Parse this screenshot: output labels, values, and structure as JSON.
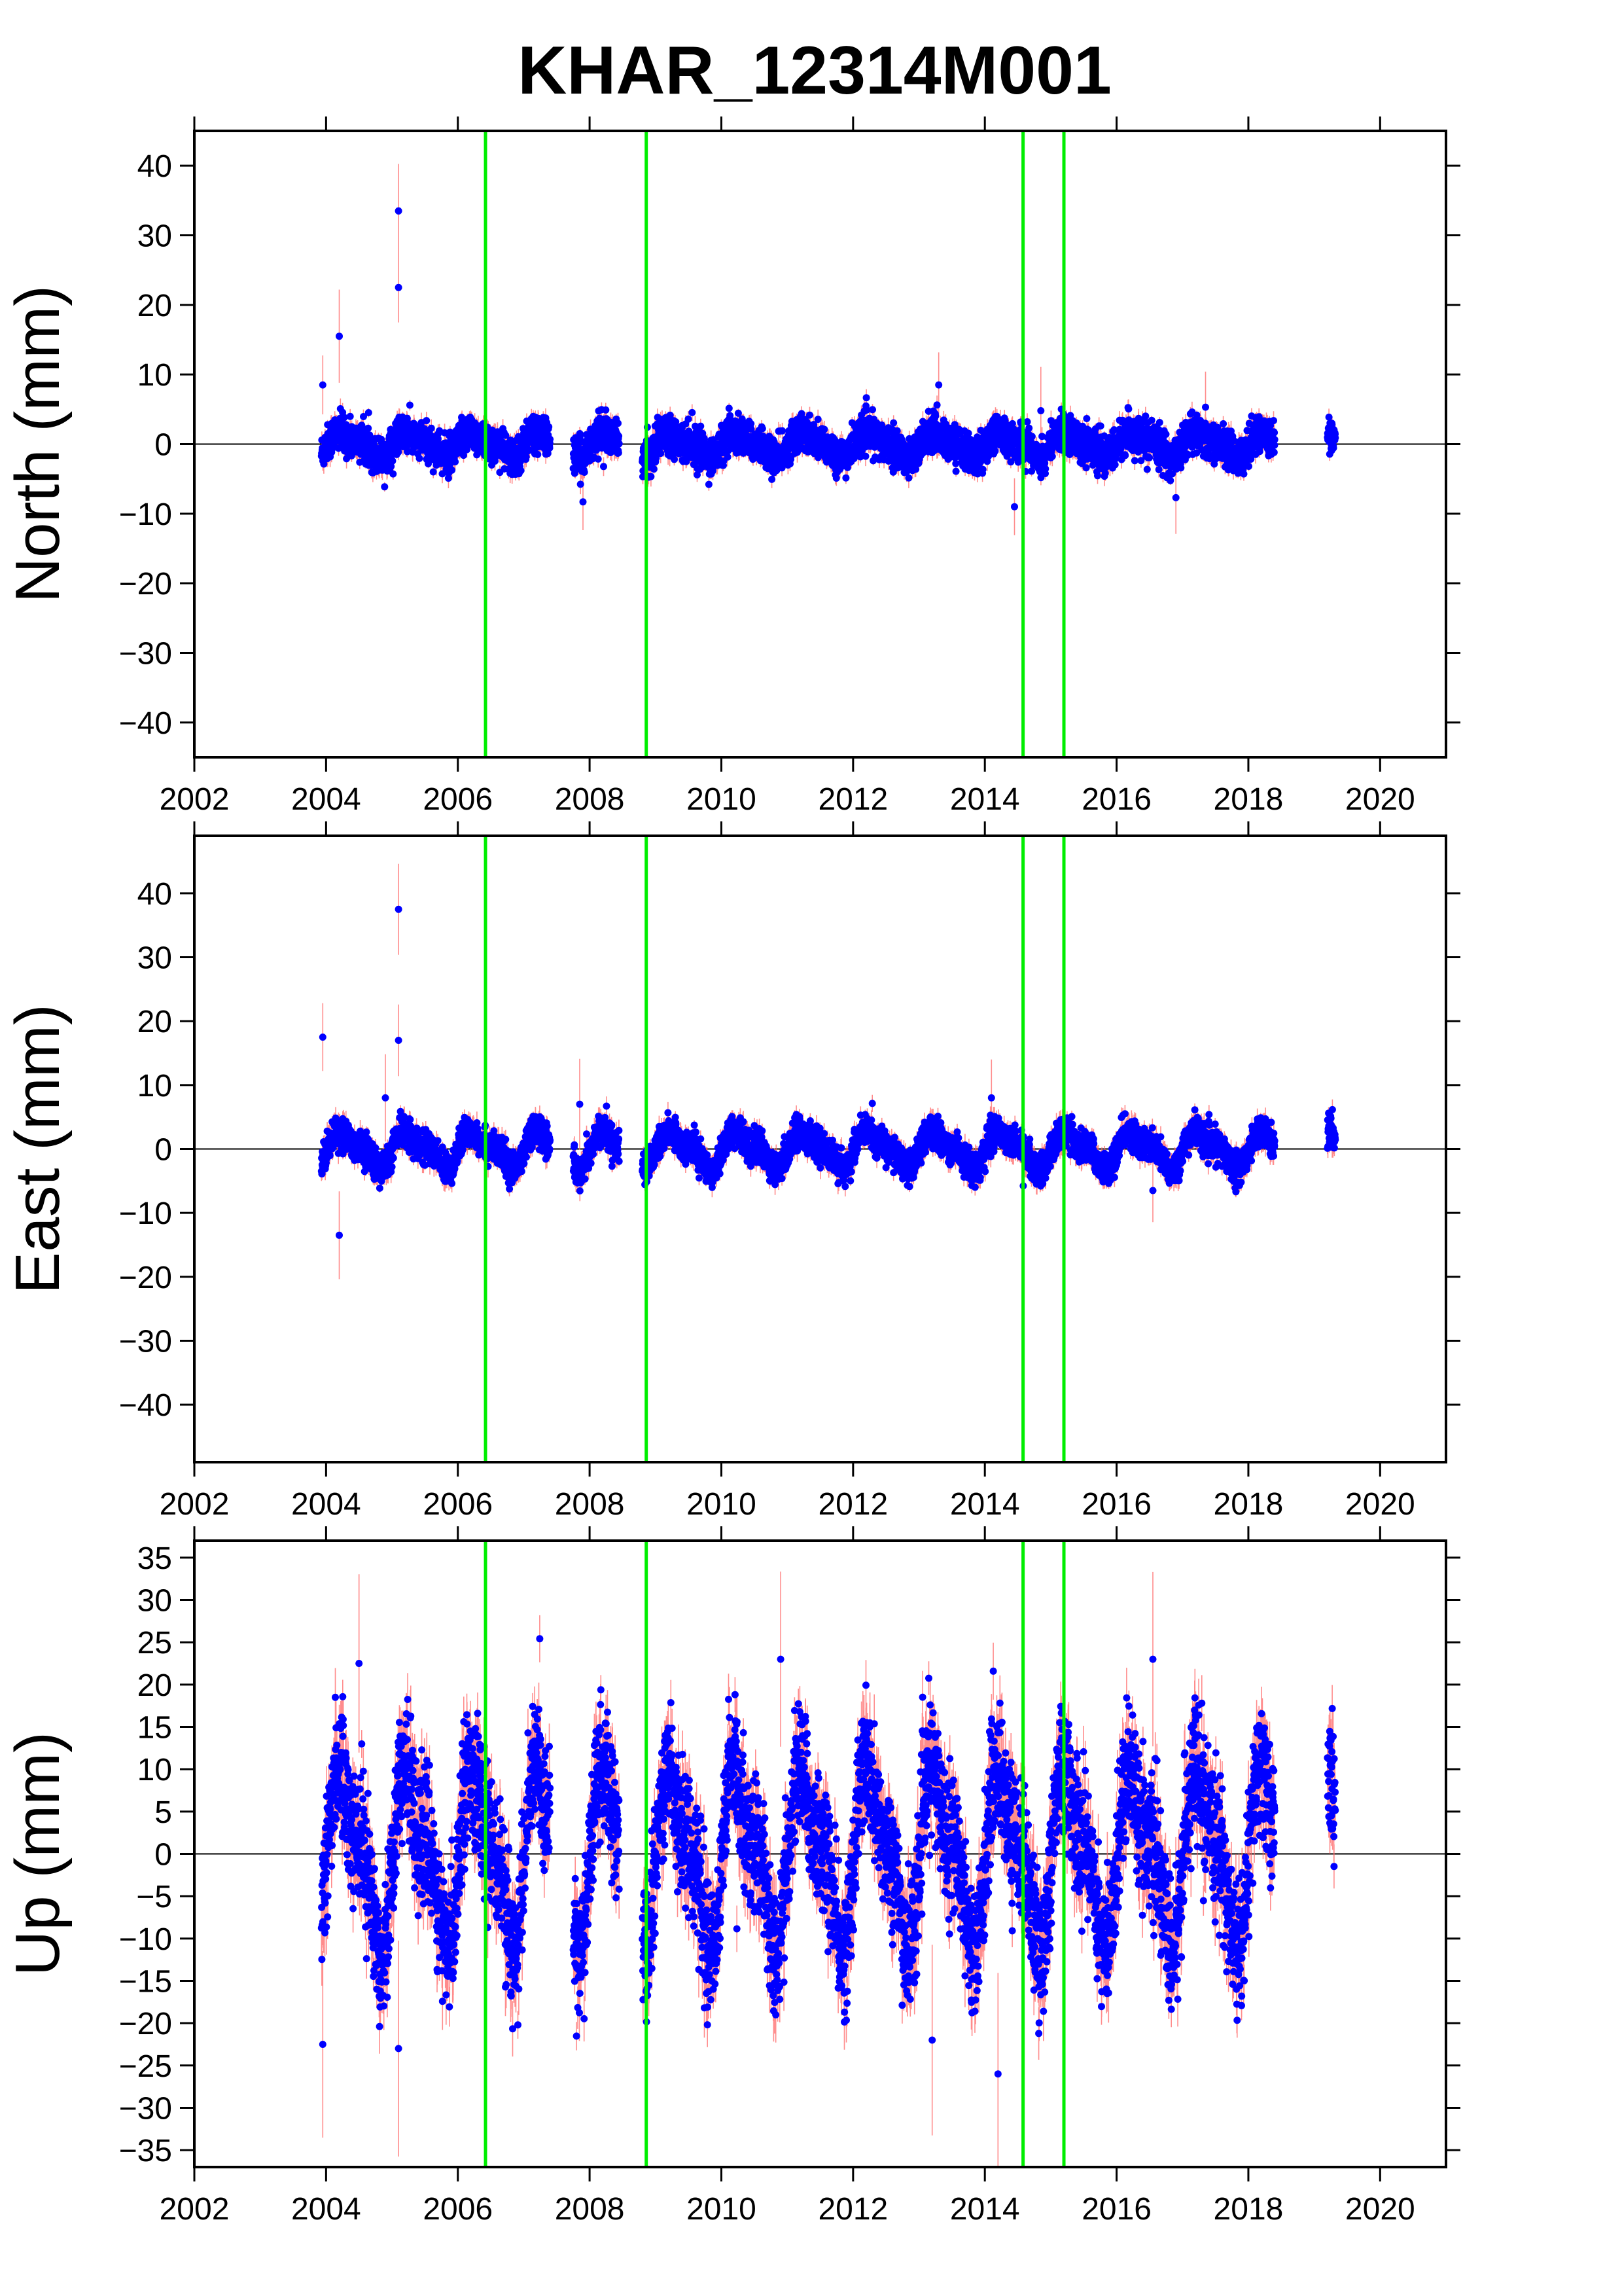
{
  "chart_data": {
    "title": "KHAR_12314M001",
    "type": "scatter",
    "station": "KHAR_12314M001",
    "colors": {
      "points": "#0000ff",
      "error_bars": "#ff6666",
      "breaks": "#00ee00",
      "zero_line": "#000000",
      "frame": "#000000"
    },
    "x_range": [
      2002,
      2021
    ],
    "x_ticks": [
      2002,
      2004,
      2006,
      2008,
      2010,
      2012,
      2014,
      2016,
      2018,
      2020
    ],
    "x_tick_labels": [
      "2002",
      "2004",
      "2006",
      "2008",
      "2010",
      "2012",
      "2014",
      "2016",
      "2018",
      "2020"
    ],
    "break_epochs": [
      2006.42,
      2008.86,
      2014.58,
      2015.2
    ],
    "data_gaps": [
      [
        2007.4,
        2007.75
      ],
      [
        2008.45,
        2008.8
      ],
      [
        2018.4,
        2019.2
      ],
      [
        2019.35,
        2021
      ]
    ],
    "panels": [
      {
        "ylabel": "North (mm)",
        "ylim": [
          -45,
          45
        ],
        "y_ticks": [
          40,
          30,
          20,
          10,
          0,
          -10,
          -20,
          -30,
          -40
        ],
        "y_tick_labels": [
          "40",
          "30",
          "20",
          "10",
          "0",
          "−10",
          "−20",
          "−30",
          "−40"
        ],
        "amplitude": 1.5,
        "noise": 1.3,
        "errbar": 1.0,
        "outliers": [
          [
            2003.95,
            8.5
          ],
          [
            2004.2,
            15.5
          ],
          [
            2005.1,
            33.5
          ],
          [
            2005.1,
            22.5
          ],
          [
            2007.9,
            -8.3
          ],
          [
            2013.3,
            8.5
          ],
          [
            2014.45,
            -9.0
          ],
          [
            2016.9,
            -7.7
          ],
          [
            2017.35,
            5.3
          ],
          [
            2014.85,
            4.8
          ]
        ]
      },
      {
        "ylabel": "East (mm)",
        "ylim": [
          -49,
          49
        ],
        "y_ticks": [
          40,
          30,
          20,
          10,
          0,
          -10,
          -20,
          -30,
          -40
        ],
        "y_tick_labels": [
          "40",
          "30",
          "20",
          "10",
          "0",
          "−10",
          "−20",
          "−30",
          "−40"
        ],
        "amplitude": 2.5,
        "noise": 1.2,
        "errbar": 1.2,
        "outliers": [
          [
            2003.95,
            17.5
          ],
          [
            2004.2,
            -13.5
          ],
          [
            2005.1,
            37.5
          ],
          [
            2005.1,
            17.0
          ],
          [
            2004.9,
            8.0
          ],
          [
            2007.85,
            7.0
          ],
          [
            2014.1,
            8.0
          ],
          [
            2016.55,
            -6.5
          ]
        ]
      },
      {
        "ylabel": "Up (mm)",
        "ylim": [
          -37,
          37
        ],
        "y_ticks": [
          35,
          30,
          25,
          20,
          15,
          10,
          5,
          0,
          -5,
          -10,
          -15,
          -20,
          -25,
          -30,
          -35
        ],
        "y_tick_labels": [
          "35",
          "30",
          "25",
          "20",
          "15",
          "10",
          "5",
          "0",
          "−5",
          "−10",
          "−15",
          "−20",
          "−25",
          "−30",
          "−35"
        ],
        "amplitude": 9.0,
        "noise": 3.8,
        "errbar": 2.5,
        "outliers": [
          [
            2003.95,
            -22.5
          ],
          [
            2005.1,
            -23.0
          ],
          [
            2010.9,
            23.0
          ],
          [
            2013.2,
            -22.0
          ],
          [
            2014.2,
            -26.0
          ],
          [
            2016.55,
            23.0
          ],
          [
            2004.5,
            22.5
          ]
        ]
      }
    ]
  }
}
